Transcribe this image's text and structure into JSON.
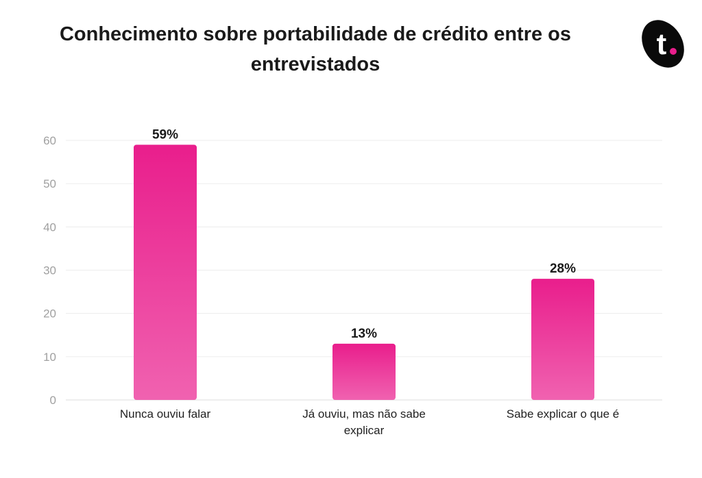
{
  "chart_data": {
    "type": "bar",
    "title": "Conhecimento sobre portabilidade de crédito entre os entrevistados",
    "categories": [
      [
        "Nunca ouviu falar"
      ],
      [
        "Já ouviu, mas não sabe",
        "explicar"
      ],
      [
        "Sabe explicar o que é"
      ]
    ],
    "values": [
      59,
      13,
      28
    ],
    "data_labels": [
      "59%",
      "13%",
      "28%"
    ],
    "y_ticks": [
      "0",
      "10",
      "20",
      "30",
      "40",
      "50",
      "60"
    ],
    "ylim": [
      0,
      60
    ],
    "grid": true,
    "legend": "none",
    "bar_color_top": "#e91e8c",
    "bar_color_bottom": "#f062b0"
  },
  "brand": {
    "logo_letter": "t",
    "logo_color": "#0a0a0a",
    "logo_dot_color": "#e91e8c"
  }
}
